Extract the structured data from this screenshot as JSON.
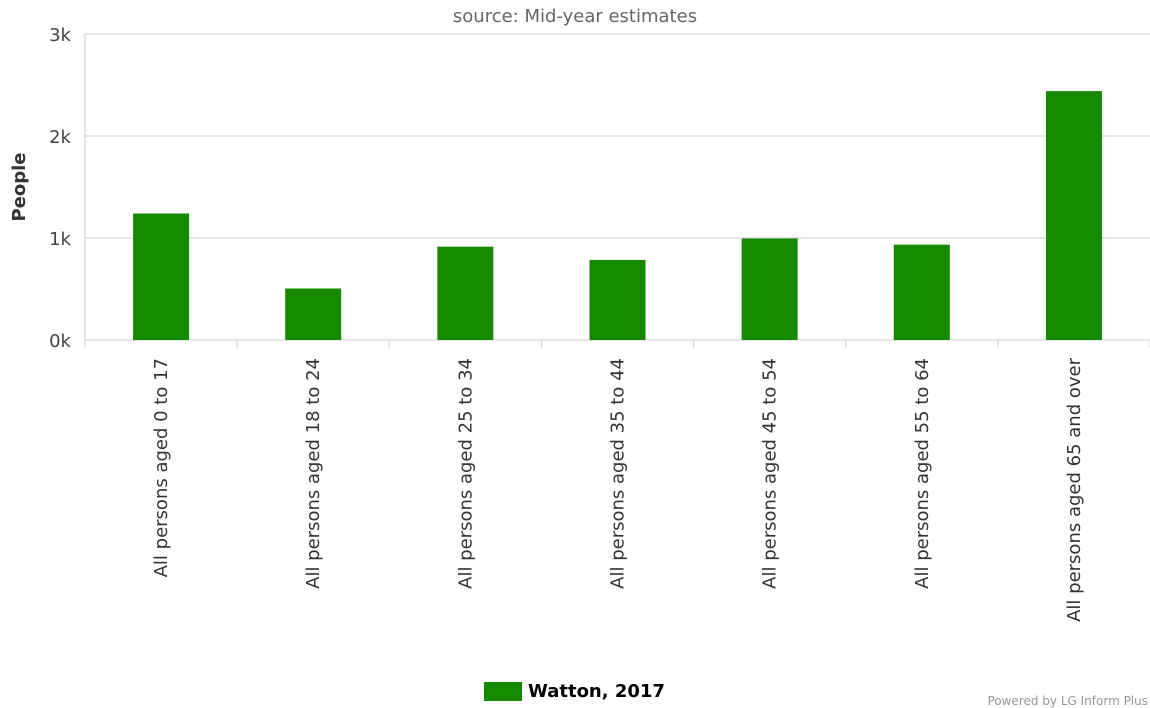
{
  "chart_data": {
    "type": "bar",
    "subtitle": "source: Mid-year estimates",
    "ylabel": "People",
    "ylim": [
      0,
      3000
    ],
    "yticks": [
      {
        "value": 0,
        "label": "0k"
      },
      {
        "value": 1000,
        "label": "1k"
      },
      {
        "value": 2000,
        "label": "2k"
      },
      {
        "value": 3000,
        "label": "3k"
      }
    ],
    "grid": true,
    "legend_position": "bottom-center",
    "categories": [
      "All persons aged 0 to 17",
      "All persons aged 18 to 24",
      "All persons aged 25 to 34",
      "All persons aged 35 to 44",
      "All persons aged 45 to 54",
      "All persons aged 55 to 64",
      "All persons aged 65 and over"
    ],
    "series": [
      {
        "name": "Watton, 2017",
        "color": "#138a00",
        "values": [
          1240,
          505,
          915,
          785,
          995,
          935,
          2440
        ]
      }
    ]
  },
  "credits": "Powered by LG Inform Plus"
}
